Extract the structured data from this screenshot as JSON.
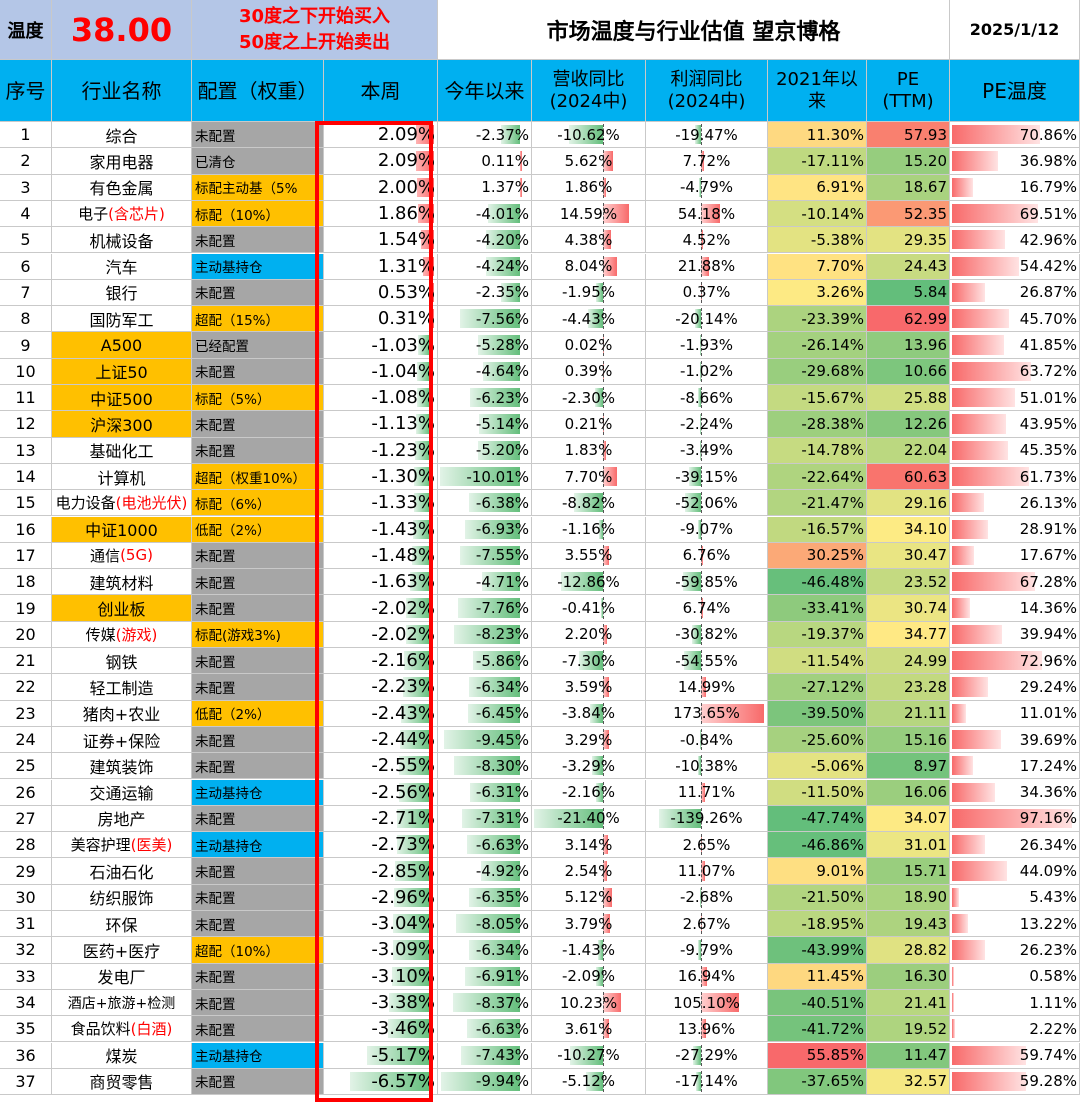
{
  "header": {
    "temp_label": "温度",
    "temp_value": "38.00",
    "rule_line1": "30度之下开始买入",
    "rule_line2": "50度之上开始卖出",
    "title": "市场温度与行业估值 望京博格",
    "date": "2025/1/12"
  },
  "columns": {
    "idx": "序号",
    "name": "行业名称",
    "alloc": "配置（权重）",
    "week": "本周",
    "ytd": "今年以来",
    "rev": "营收同比\n(2024中)",
    "profit": "利润同比\n(2024中)",
    "since2021": "2021年以\n来",
    "pe": "PE\n(TTM)",
    "petemp": "PE温度"
  },
  "colors": {
    "grey": "#a6a6a6",
    "orange": "#ffc000",
    "blue": "#00b0f0",
    "white": "#ffffff",
    "red_text": "#ff0000",
    "header_blue": "#00b0f0",
    "title_lavender": "#b4c6e7",
    "highlight_box": "#ff0000"
  },
  "rows": [
    {
      "idx": "1",
      "name": [
        [
          "综合",
          "k"
        ]
      ],
      "name_bg": "white",
      "alloc": "未配置",
      "alloc_bg": "grey",
      "week": "2.09%",
      "week_v": 2.09,
      "ytd": "-2.37%",
      "ytd_v": -2.37,
      "rev": "-10.62%",
      "rev_v": -10.62,
      "profit": "-19.47%",
      "profit_v": -19.47,
      "s21": "11.30%",
      "s21_v": 11.3,
      "pe": "57.93",
      "pe_v": 57.93,
      "pet": "70.86%",
      "pet_v": 70.86
    },
    {
      "idx": "2",
      "name": [
        [
          "家用电器",
          "k"
        ]
      ],
      "name_bg": "white",
      "alloc": "已清仓",
      "alloc_bg": "grey",
      "week": "2.09%",
      "week_v": 2.09,
      "ytd": "0.11%",
      "ytd_v": 0.11,
      "rev": "5.62%",
      "rev_v": 5.62,
      "profit": "7.72%",
      "profit_v": 7.72,
      "s21": "-17.11%",
      "s21_v": -17.11,
      "pe": "15.20",
      "pe_v": 15.2,
      "pet": "36.98%",
      "pet_v": 36.98
    },
    {
      "idx": "3",
      "name": [
        [
          "有色金属",
          "k"
        ]
      ],
      "name_bg": "white",
      "alloc": "标配主动基（5%",
      "alloc_bg": "orange",
      "week": "2.00%",
      "week_v": 2.0,
      "ytd": "1.37%",
      "ytd_v": 1.37,
      "rev": "1.86%",
      "rev_v": 1.86,
      "profit": "-4.79%",
      "profit_v": -4.79,
      "s21": "6.91%",
      "s21_v": 6.91,
      "pe": "18.67",
      "pe_v": 18.67,
      "pet": "16.79%",
      "pet_v": 16.79
    },
    {
      "idx": "4",
      "name": [
        [
          "电子",
          "k"
        ],
        [
          "(含芯片)",
          "r"
        ]
      ],
      "name_bg": "white",
      "alloc": "标配（10%）",
      "alloc_bg": "orange",
      "week": "1.86%",
      "week_v": 1.86,
      "ytd": "-4.01%",
      "ytd_v": -4.01,
      "rev": "14.59%",
      "rev_v": 14.59,
      "profit": "54.18%",
      "profit_v": 54.18,
      "s21": "-10.14%",
      "s21_v": -10.14,
      "pe": "52.35",
      "pe_v": 52.35,
      "pet": "69.51%",
      "pet_v": 69.51
    },
    {
      "idx": "5",
      "name": [
        [
          "机械设备",
          "k"
        ]
      ],
      "name_bg": "white",
      "alloc": "未配置",
      "alloc_bg": "grey",
      "week": "1.54%",
      "week_v": 1.54,
      "ytd": "-4.20%",
      "ytd_v": -4.2,
      "rev": "4.38%",
      "rev_v": 4.38,
      "profit": "4.52%",
      "profit_v": 4.52,
      "s21": "-5.38%",
      "s21_v": -5.38,
      "pe": "29.35",
      "pe_v": 29.35,
      "pet": "42.96%",
      "pet_v": 42.96
    },
    {
      "idx": "6",
      "name": [
        [
          "汽车",
          "k"
        ]
      ],
      "name_bg": "white",
      "alloc": "主动基持仓",
      "alloc_bg": "blue",
      "week": "1.31%",
      "week_v": 1.31,
      "ytd": "-4.24%",
      "ytd_v": -4.24,
      "rev": "8.04%",
      "rev_v": 8.04,
      "profit": "21.88%",
      "profit_v": 21.88,
      "s21": "7.70%",
      "s21_v": 7.7,
      "pe": "24.43",
      "pe_v": 24.43,
      "pet": "54.42%",
      "pet_v": 54.42
    },
    {
      "idx": "7",
      "name": [
        [
          "银行",
          "k"
        ]
      ],
      "name_bg": "white",
      "alloc": "未配置",
      "alloc_bg": "grey",
      "week": "0.53%",
      "week_v": 0.53,
      "ytd": "-2.35%",
      "ytd_v": -2.35,
      "rev": "-1.95%",
      "rev_v": -1.95,
      "profit": "0.37%",
      "profit_v": 0.37,
      "s21": "3.26%",
      "s21_v": 3.26,
      "pe": "5.84",
      "pe_v": 5.84,
      "pet": "26.87%",
      "pet_v": 26.87
    },
    {
      "idx": "8",
      "name": [
        [
          "国防军工",
          "k"
        ]
      ],
      "name_bg": "white",
      "alloc": "超配（15%）",
      "alloc_bg": "orange",
      "week": "0.31%",
      "week_v": 0.31,
      "ytd": "-7.56%",
      "ytd_v": -7.56,
      "rev": "-4.43%",
      "rev_v": -4.43,
      "profit": "-20.14%",
      "profit_v": -20.14,
      "s21": "-23.39%",
      "s21_v": -23.39,
      "pe": "62.99",
      "pe_v": 62.99,
      "pet": "45.70%",
      "pet_v": 45.7
    },
    {
      "idx": "9",
      "name": [
        [
          "A500",
          "k"
        ]
      ],
      "name_bg": "orange",
      "alloc": "已经配置",
      "alloc_bg": "grey",
      "week": "-1.03%",
      "week_v": -1.03,
      "ytd": "-5.28%",
      "ytd_v": -5.28,
      "rev": "0.02%",
      "rev_v": 0.02,
      "profit": "-1.93%",
      "profit_v": -1.93,
      "s21": "-26.14%",
      "s21_v": -26.14,
      "pe": "13.96",
      "pe_v": 13.96,
      "pet": "41.85%",
      "pet_v": 41.85
    },
    {
      "idx": "10",
      "name": [
        [
          "上证50",
          "k"
        ]
      ],
      "name_bg": "orange",
      "alloc": "未配置",
      "alloc_bg": "grey",
      "week": "-1.04%",
      "week_v": -1.04,
      "ytd": "-4.64%",
      "ytd_v": -4.64,
      "rev": "0.39%",
      "rev_v": 0.39,
      "profit": "-1.02%",
      "profit_v": -1.02,
      "s21": "-29.68%",
      "s21_v": -29.68,
      "pe": "10.66",
      "pe_v": 10.66,
      "pet": "63.72%",
      "pet_v": 63.72
    },
    {
      "idx": "11",
      "name": [
        [
          "中证500",
          "k"
        ]
      ],
      "name_bg": "orange",
      "alloc": "标配（5%）",
      "alloc_bg": "orange",
      "week": "-1.08%",
      "week_v": -1.08,
      "ytd": "-6.23%",
      "ytd_v": -6.23,
      "rev": "-2.30%",
      "rev_v": -2.3,
      "profit": "-8.66%",
      "profit_v": -8.66,
      "s21": "-15.67%",
      "s21_v": -15.67,
      "pe": "25.88",
      "pe_v": 25.88,
      "pet": "51.01%",
      "pet_v": 51.01
    },
    {
      "idx": "12",
      "name": [
        [
          "沪深300",
          "k"
        ]
      ],
      "name_bg": "orange",
      "alloc": "未配置",
      "alloc_bg": "grey",
      "week": "-1.13%",
      "week_v": -1.13,
      "ytd": "-5.14%",
      "ytd_v": -5.14,
      "rev": "0.21%",
      "rev_v": 0.21,
      "profit": "-2.24%",
      "profit_v": -2.24,
      "s21": "-28.38%",
      "s21_v": -28.38,
      "pe": "12.26",
      "pe_v": 12.26,
      "pet": "43.95%",
      "pet_v": 43.95
    },
    {
      "idx": "13",
      "name": [
        [
          "基础化工",
          "k"
        ]
      ],
      "name_bg": "white",
      "alloc": "未配置",
      "alloc_bg": "grey",
      "week": "-1.23%",
      "week_v": -1.23,
      "ytd": "-5.20%",
      "ytd_v": -5.2,
      "rev": "1.83%",
      "rev_v": 1.83,
      "profit": "-3.49%",
      "profit_v": -3.49,
      "s21": "-14.78%",
      "s21_v": -14.78,
      "pe": "22.04",
      "pe_v": 22.04,
      "pet": "45.35%",
      "pet_v": 45.35
    },
    {
      "idx": "14",
      "name": [
        [
          "计算机",
          "k"
        ]
      ],
      "name_bg": "white",
      "alloc": "超配（权重10%）",
      "alloc_bg": "orange",
      "week": "-1.30%",
      "week_v": -1.3,
      "ytd": "-10.01%",
      "ytd_v": -10.01,
      "rev": "7.70%",
      "rev_v": 7.7,
      "profit": "-39.15%",
      "profit_v": -39.15,
      "s21": "-22.64%",
      "s21_v": -22.64,
      "pe": "60.63",
      "pe_v": 60.63,
      "pet": "61.73%",
      "pet_v": 61.73
    },
    {
      "idx": "15",
      "name": [
        [
          "电力设备",
          "k"
        ],
        [
          "(电池光伏)",
          "r"
        ]
      ],
      "name_bg": "white",
      "alloc": "标配（6%）",
      "alloc_bg": "orange",
      "week": "-1.33%",
      "week_v": -1.33,
      "ytd": "-6.38%",
      "ytd_v": -6.38,
      "rev": "-8.82%",
      "rev_v": -8.82,
      "profit": "-52.06%",
      "profit_v": -52.06,
      "s21": "-21.47%",
      "s21_v": -21.47,
      "pe": "29.16",
      "pe_v": 29.16,
      "pet": "26.13%",
      "pet_v": 26.13
    },
    {
      "idx": "16",
      "name": [
        [
          "中证1000",
          "k"
        ]
      ],
      "name_bg": "orange",
      "alloc": "低配（2%）",
      "alloc_bg": "orange",
      "week": "-1.43%",
      "week_v": -1.43,
      "ytd": "-6.93%",
      "ytd_v": -6.93,
      "rev": "-1.16%",
      "rev_v": -1.16,
      "profit": "-9.07%",
      "profit_v": -9.07,
      "s21": "-16.57%",
      "s21_v": -16.57,
      "pe": "34.10",
      "pe_v": 34.1,
      "pet": "28.91%",
      "pet_v": 28.91
    },
    {
      "idx": "17",
      "name": [
        [
          "通信",
          "k"
        ],
        [
          "(5G)",
          "r"
        ]
      ],
      "name_bg": "white",
      "alloc": "未配置",
      "alloc_bg": "grey",
      "week": "-1.48%",
      "week_v": -1.48,
      "ytd": "-7.55%",
      "ytd_v": -7.55,
      "rev": "3.55%",
      "rev_v": 3.55,
      "profit": "6.76%",
      "profit_v": 6.76,
      "s21": "30.25%",
      "s21_v": 30.25,
      "pe": "30.47",
      "pe_v": 30.47,
      "pet": "17.67%",
      "pet_v": 17.67
    },
    {
      "idx": "18",
      "name": [
        [
          "建筑材料",
          "k"
        ]
      ],
      "name_bg": "white",
      "alloc": "未配置",
      "alloc_bg": "grey",
      "week": "-1.63%",
      "week_v": -1.63,
      "ytd": "-4.71%",
      "ytd_v": -4.71,
      "rev": "-12.86%",
      "rev_v": -12.86,
      "profit": "-59.85%",
      "profit_v": -59.85,
      "s21": "-46.48%",
      "s21_v": -46.48,
      "pe": "23.52",
      "pe_v": 23.52,
      "pet": "67.28%",
      "pet_v": 67.28
    },
    {
      "idx": "19",
      "name": [
        [
          "创业板",
          "k"
        ]
      ],
      "name_bg": "orange",
      "alloc": "未配置",
      "alloc_bg": "grey",
      "week": "-2.02%",
      "week_v": -2.02,
      "ytd": "-7.76%",
      "ytd_v": -7.76,
      "rev": "-0.41%",
      "rev_v": -0.41,
      "profit": "6.74%",
      "profit_v": 6.74,
      "s21": "-33.41%",
      "s21_v": -33.41,
      "pe": "30.74",
      "pe_v": 30.74,
      "pet": "14.36%",
      "pet_v": 14.36
    },
    {
      "idx": "20",
      "name": [
        [
          "传媒",
          "k"
        ],
        [
          "(游戏)",
          "r"
        ]
      ],
      "name_bg": "white",
      "alloc": "标配(游戏3%)",
      "alloc_bg": "orange",
      "week": "-2.02%",
      "week_v": -2.02,
      "ytd": "-8.23%",
      "ytd_v": -8.23,
      "rev": "2.20%",
      "rev_v": 2.2,
      "profit": "-30.82%",
      "profit_v": -30.82,
      "s21": "-19.37%",
      "s21_v": -19.37,
      "pe": "34.77",
      "pe_v": 34.77,
      "pet": "39.94%",
      "pet_v": 39.94
    },
    {
      "idx": "21",
      "name": [
        [
          "钢铁",
          "k"
        ]
      ],
      "name_bg": "white",
      "alloc": "未配置",
      "alloc_bg": "grey",
      "week": "-2.16%",
      "week_v": -2.16,
      "ytd": "-5.86%",
      "ytd_v": -5.86,
      "rev": "-7.30%",
      "rev_v": -7.3,
      "profit": "-54.55%",
      "profit_v": -54.55,
      "s21": "-11.54%",
      "s21_v": -11.54,
      "pe": "24.99",
      "pe_v": 24.99,
      "pet": "72.96%",
      "pet_v": 72.96
    },
    {
      "idx": "22",
      "name": [
        [
          "轻工制造",
          "k"
        ]
      ],
      "name_bg": "white",
      "alloc": "未配置",
      "alloc_bg": "grey",
      "week": "-2.23%",
      "week_v": -2.23,
      "ytd": "-6.34%",
      "ytd_v": -6.34,
      "rev": "3.59%",
      "rev_v": 3.59,
      "profit": "14.99%",
      "profit_v": 14.99,
      "s21": "-27.12%",
      "s21_v": -27.12,
      "pe": "23.28",
      "pe_v": 23.28,
      "pet": "29.24%",
      "pet_v": 29.24
    },
    {
      "idx": "23",
      "name": [
        [
          "猪肉+农业",
          "k"
        ]
      ],
      "name_bg": "white",
      "alloc": "低配（2%）",
      "alloc_bg": "orange",
      "week": "-2.43%",
      "week_v": -2.43,
      "ytd": "-6.45%",
      "ytd_v": -6.45,
      "rev": "-3.84%",
      "rev_v": -3.84,
      "profit": "173.65%",
      "profit_v": 173.65,
      "s21": "-39.50%",
      "s21_v": -39.5,
      "pe": "21.11",
      "pe_v": 21.11,
      "pet": "11.01%",
      "pet_v": 11.01
    },
    {
      "idx": "24",
      "name": [
        [
          "证券+保险",
          "k"
        ]
      ],
      "name_bg": "white",
      "alloc": "未配置",
      "alloc_bg": "grey",
      "week": "-2.44%",
      "week_v": -2.44,
      "ytd": "-9.45%",
      "ytd_v": -9.45,
      "rev": "3.29%",
      "rev_v": 3.29,
      "profit": "-0.84%",
      "profit_v": -0.84,
      "s21": "-25.60%",
      "s21_v": -25.6,
      "pe": "15.16",
      "pe_v": 15.16,
      "pet": "39.69%",
      "pet_v": 39.69
    },
    {
      "idx": "25",
      "name": [
        [
          "建筑装饰",
          "k"
        ]
      ],
      "name_bg": "white",
      "alloc": "未配置",
      "alloc_bg": "grey",
      "week": "-2.55%",
      "week_v": -2.55,
      "ytd": "-8.30%",
      "ytd_v": -8.3,
      "rev": "-3.29%",
      "rev_v": -3.29,
      "profit": "-10.38%",
      "profit_v": -10.38,
      "s21": "-5.06%",
      "s21_v": -5.06,
      "pe": "8.97",
      "pe_v": 8.97,
      "pet": "17.24%",
      "pet_v": 17.24
    },
    {
      "idx": "26",
      "name": [
        [
          "交通运输",
          "k"
        ]
      ],
      "name_bg": "white",
      "alloc": "主动基持仓",
      "alloc_bg": "blue",
      "week": "-2.56%",
      "week_v": -2.56,
      "ytd": "-6.31%",
      "ytd_v": -6.31,
      "rev": "-2.16%",
      "rev_v": -2.16,
      "profit": "11.71%",
      "profit_v": 11.71,
      "s21": "-11.50%",
      "s21_v": -11.5,
      "pe": "16.06",
      "pe_v": 16.06,
      "pet": "34.36%",
      "pet_v": 34.36
    },
    {
      "idx": "27",
      "name": [
        [
          "房地产",
          "k"
        ]
      ],
      "name_bg": "white",
      "alloc": "未配置",
      "alloc_bg": "grey",
      "week": "-2.71%",
      "week_v": -2.71,
      "ytd": "-7.31%",
      "ytd_v": -7.31,
      "rev": "-21.40%",
      "rev_v": -21.4,
      "profit": "-139.26%",
      "profit_v": -139.26,
      "s21": "-47.74%",
      "s21_v": -47.74,
      "pe": "34.07",
      "pe_v": 34.07,
      "pet": "97.16%",
      "pet_v": 97.16
    },
    {
      "idx": "28",
      "name": [
        [
          "美容护理",
          "k"
        ],
        [
          "(医美)",
          "r"
        ]
      ],
      "name_bg": "white",
      "alloc": "主动基持仓",
      "alloc_bg": "blue",
      "week": "-2.73%",
      "week_v": -2.73,
      "ytd": "-6.63%",
      "ytd_v": -6.63,
      "rev": "3.14%",
      "rev_v": 3.14,
      "profit": "2.65%",
      "profit_v": 2.65,
      "s21": "-46.86%",
      "s21_v": -46.86,
      "pe": "31.01",
      "pe_v": 31.01,
      "pet": "26.34%",
      "pet_v": 26.34
    },
    {
      "idx": "29",
      "name": [
        [
          "石油石化",
          "k"
        ]
      ],
      "name_bg": "white",
      "alloc": "未配置",
      "alloc_bg": "grey",
      "week": "-2.85%",
      "week_v": -2.85,
      "ytd": "-4.92%",
      "ytd_v": -4.92,
      "rev": "2.54%",
      "rev_v": 2.54,
      "profit": "11.07%",
      "profit_v": 11.07,
      "s21": "9.01%",
      "s21_v": 9.01,
      "pe": "15.71",
      "pe_v": 15.71,
      "pet": "44.09%",
      "pet_v": 44.09
    },
    {
      "idx": "30",
      "name": [
        [
          "纺织服饰",
          "k"
        ]
      ],
      "name_bg": "white",
      "alloc": "未配置",
      "alloc_bg": "grey",
      "week": "-2.96%",
      "week_v": -2.96,
      "ytd": "-6.35%",
      "ytd_v": -6.35,
      "rev": "5.12%",
      "rev_v": 5.12,
      "profit": "-2.68%",
      "profit_v": -2.68,
      "s21": "-21.50%",
      "s21_v": -21.5,
      "pe": "18.90",
      "pe_v": 18.9,
      "pet": "5.43%",
      "pet_v": 5.43
    },
    {
      "idx": "31",
      "name": [
        [
          "环保",
          "k"
        ]
      ],
      "name_bg": "white",
      "alloc": "未配置",
      "alloc_bg": "grey",
      "week": "-3.04%",
      "week_v": -3.04,
      "ytd": "-8.05%",
      "ytd_v": -8.05,
      "rev": "3.79%",
      "rev_v": 3.79,
      "profit": "2.67%",
      "profit_v": 2.67,
      "s21": "-18.95%",
      "s21_v": -18.95,
      "pe": "19.43",
      "pe_v": 19.43,
      "pet": "13.22%",
      "pet_v": 13.22
    },
    {
      "idx": "32",
      "name": [
        [
          "医药+医疗",
          "k"
        ]
      ],
      "name_bg": "white",
      "alloc": "超配（10%）",
      "alloc_bg": "orange",
      "week": "-3.09%",
      "week_v": -3.09,
      "ytd": "-6.34%",
      "ytd_v": -6.34,
      "rev": "-1.43%",
      "rev_v": -1.43,
      "profit": "-9.79%",
      "profit_v": -9.79,
      "s21": "-43.99%",
      "s21_v": -43.99,
      "pe": "28.82",
      "pe_v": 28.82,
      "pet": "26.23%",
      "pet_v": 26.23
    },
    {
      "idx": "33",
      "name": [
        [
          "发电厂",
          "k"
        ]
      ],
      "name_bg": "white",
      "alloc": "未配置",
      "alloc_bg": "grey",
      "week": "-3.10%",
      "week_v": -3.1,
      "ytd": "-6.91%",
      "ytd_v": -6.91,
      "rev": "-2.09%",
      "rev_v": -2.09,
      "profit": "16.94%",
      "profit_v": 16.94,
      "s21": "11.45%",
      "s21_v": 11.45,
      "pe": "16.30",
      "pe_v": 16.3,
      "pet": "0.58%",
      "pet_v": 0.58
    },
    {
      "idx": "34",
      "name": [
        [
          "酒店+旅游+检测",
          "k"
        ]
      ],
      "name_bg": "white",
      "alloc": "未配置",
      "alloc_bg": "grey",
      "week": "-3.38%",
      "week_v": -3.38,
      "ytd": "-8.37%",
      "ytd_v": -8.37,
      "rev": "10.23%",
      "rev_v": 10.23,
      "profit": "105.10%",
      "profit_v": 105.1,
      "s21": "-40.51%",
      "s21_v": -40.51,
      "pe": "21.41",
      "pe_v": 21.41,
      "pet": "1.11%",
      "pet_v": 1.11
    },
    {
      "idx": "35",
      "name": [
        [
          "食品饮料",
          "k"
        ],
        [
          "(白酒)",
          "r"
        ]
      ],
      "name_bg": "white",
      "alloc": "未配置",
      "alloc_bg": "grey",
      "week": "-3.46%",
      "week_v": -3.46,
      "ytd": "-6.63%",
      "ytd_v": -6.63,
      "rev": "3.61%",
      "rev_v": 3.61,
      "profit": "13.96%",
      "profit_v": 13.96,
      "s21": "-41.72%",
      "s21_v": -41.72,
      "pe": "19.52",
      "pe_v": 19.52,
      "pet": "2.22%",
      "pet_v": 2.22
    },
    {
      "idx": "36",
      "name": [
        [
          "煤炭",
          "k"
        ]
      ],
      "name_bg": "white",
      "alloc": "主动基持仓",
      "alloc_bg": "blue",
      "week": "-5.17%",
      "week_v": -5.17,
      "ytd": "-7.43%",
      "ytd_v": -7.43,
      "rev": "-10.27%",
      "rev_v": -10.27,
      "profit": "-27.29%",
      "profit_v": -27.29,
      "s21": "55.85%",
      "s21_v": 55.85,
      "pe": "11.47",
      "pe_v": 11.47,
      "pet": "59.74%",
      "pet_v": 59.74
    },
    {
      "idx": "37",
      "name": [
        [
          "商贸零售",
          "k"
        ]
      ],
      "name_bg": "white",
      "alloc": "未配置",
      "alloc_bg": "grey",
      "week": "-6.57%",
      "week_v": -6.57,
      "ytd": "-9.94%",
      "ytd_v": -9.94,
      "rev": "-5.12%",
      "rev_v": -5.12,
      "profit": "-17.14%",
      "profit_v": -17.14,
      "s21": "-37.65%",
      "s21_v": -37.65,
      "pe": "32.57",
      "pe_v": 32.57,
      "pet": "59.28%",
      "pet_v": 59.28
    }
  ]
}
